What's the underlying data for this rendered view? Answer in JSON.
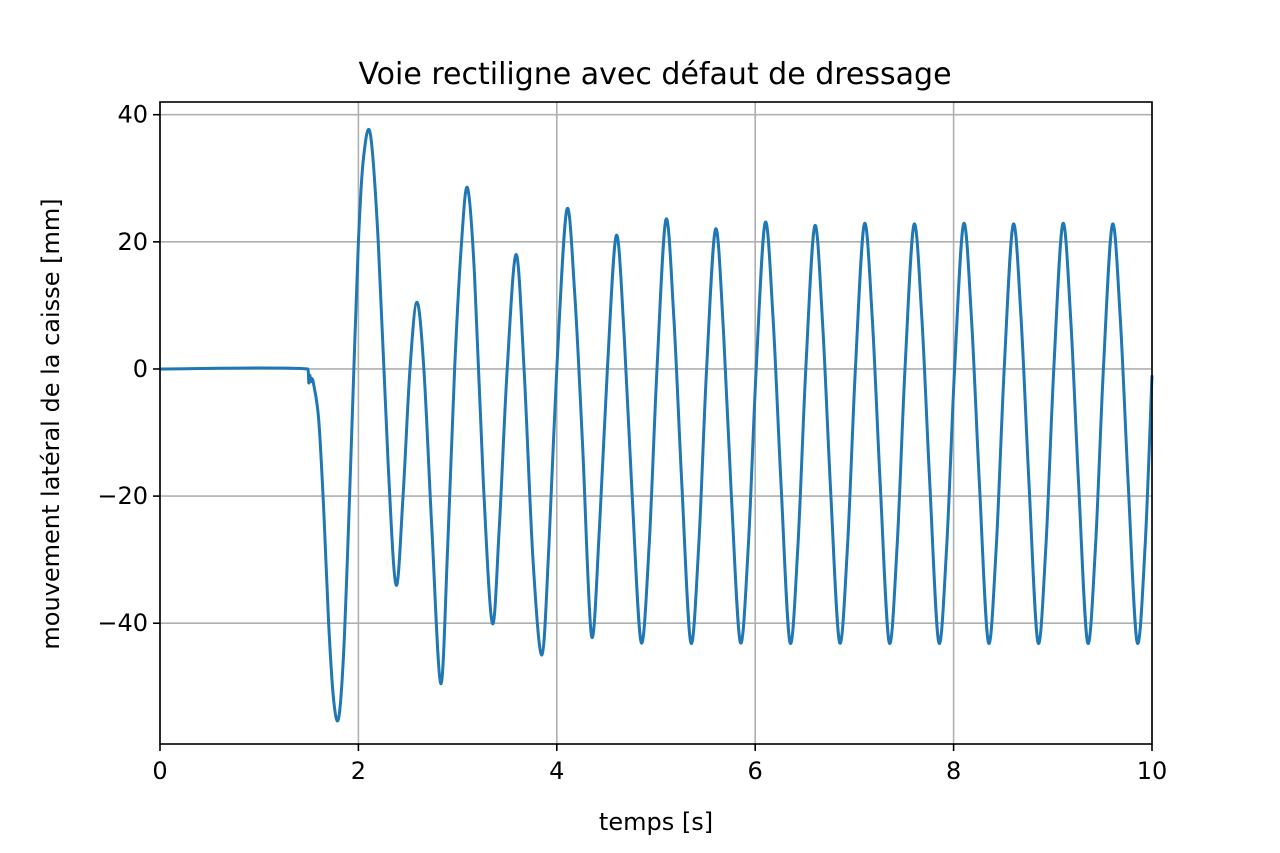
{
  "chart_data": {
    "type": "line",
    "title": "Voie rectiligne avec défaut de dressage",
    "xlabel": "temps [s]",
    "ylabel": "mouvement latéral de la caisse [mm]",
    "xlim": [
      0,
      10
    ],
    "ylim": [
      -59,
      42
    ],
    "xticks": [
      0,
      2,
      4,
      6,
      8,
      10
    ],
    "xtick_labels": [
      "0",
      "2",
      "4",
      "6",
      "8",
      "10"
    ],
    "yticks": [
      -40,
      -20,
      0,
      20,
      40
    ],
    "ytick_labels": [
      "−40",
      "−20",
      "0",
      "20",
      "40"
    ],
    "grid": true,
    "line_color": "#1f77b4",
    "series": [
      {
        "x": [
          0,
          1.49,
          1.5,
          1.51,
          1.52,
          1.53,
          1.55,
          1.6,
          1.65,
          1.7,
          1.75,
          1.8,
          1.85,
          1.9,
          1.95,
          2.0,
          2.05,
          2.12,
          2.2,
          2.3,
          2.38,
          2.45,
          2.52,
          2.59,
          2.66,
          2.74,
          2.83,
          2.9,
          2.97,
          3.04,
          3.1,
          3.17,
          3.26,
          3.35,
          3.42,
          3.5,
          3.59,
          3.67,
          3.76,
          3.85,
          3.92,
          4.0,
          4.1,
          4.18,
          4.26,
          4.35,
          4.43,
          4.51,
          4.6,
          4.68,
          4.76,
          4.85,
          4.93,
          5.01,
          5.1,
          5.18,
          5.26,
          5.35,
          5.43,
          5.51,
          5.6,
          5.68,
          5.76,
          5.85,
          5.93,
          6.01,
          6.1,
          6.18,
          6.26,
          6.35,
          6.43,
          6.51,
          6.6,
          6.68,
          6.76,
          6.85,
          6.93,
          7.01,
          7.1,
          7.18,
          7.26,
          7.35,
          7.43,
          7.51,
          7.6,
          7.68,
          7.76,
          7.85,
          7.93,
          8.01,
          8.1,
          8.18,
          8.26,
          8.35,
          8.43,
          8.51,
          8.6,
          8.68,
          8.76,
          8.85,
          8.93,
          9.01,
          9.1,
          9.18,
          9.26,
          9.35,
          9.43,
          9.51,
          9.6,
          9.68,
          9.76,
          9.85,
          9.93,
          10.0
        ],
        "y": [
          0,
          0,
          -2.2,
          -1.0,
          -2.0,
          -1.5,
          -2.5,
          -8,
          -22,
          -40,
          -52,
          -55,
          -45,
          -25,
          -2,
          20,
          33,
          37,
          20,
          -15,
          -34,
          -20,
          0,
          10.5,
          0,
          -25,
          -49.5,
          -28,
          0,
          20,
          28.5,
          15,
          -18,
          -40,
          -25,
          0,
          18,
          0,
          -30,
          -45,
          -28,
          0,
          25,
          12,
          -12,
          -42,
          -25,
          0,
          21,
          5,
          -20,
          -43,
          -28,
          0,
          23.5,
          8,
          -18,
          -43,
          -28,
          0,
          22,
          6,
          -20,
          -43,
          -28,
          0,
          23,
          8,
          -18,
          -43,
          -28,
          0,
          22.5,
          7,
          -19,
          -43,
          -28,
          0,
          22.8,
          8,
          -18,
          -43,
          -28,
          0,
          22.7,
          8,
          -18,
          -43,
          -28,
          0,
          22.8,
          8,
          -18,
          -43,
          -28,
          0,
          22.7,
          8,
          -18,
          -43,
          -28,
          0,
          22.8,
          8,
          -18,
          -43,
          -28,
          0,
          22.7,
          8,
          -18,
          -43,
          -28,
          -1
        ]
      }
    ]
  }
}
